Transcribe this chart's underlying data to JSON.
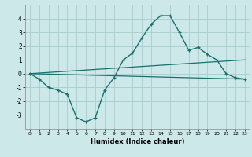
{
  "title": "",
  "xlabel": "Humidex (Indice chaleur)",
  "bg_color": "#cce8e8",
  "grid_color": "#aacccc",
  "line_color": "#1a7070",
  "xlim": [
    -0.5,
    23.5
  ],
  "ylim": [
    -4.0,
    5.0
  ],
  "x_ticks": [
    0,
    1,
    2,
    3,
    4,
    5,
    6,
    7,
    8,
    9,
    10,
    11,
    12,
    13,
    14,
    15,
    16,
    17,
    18,
    19,
    20,
    21,
    22,
    23
  ],
  "y_ticks": [
    -3,
    -2,
    -1,
    0,
    1,
    2,
    3,
    4
  ],
  "main_x": [
    0,
    1,
    2,
    3,
    4,
    5,
    6,
    7,
    8,
    9,
    10,
    11,
    12,
    13,
    14,
    15,
    16,
    17,
    18,
    19,
    20,
    21,
    22,
    23
  ],
  "main_y": [
    0.0,
    -0.4,
    -1.0,
    -1.2,
    -1.5,
    -3.2,
    -3.5,
    -3.2,
    -1.2,
    -0.3,
    1.0,
    1.5,
    2.6,
    3.6,
    4.2,
    4.2,
    3.0,
    1.7,
    1.9,
    1.4,
    1.0,
    0.0,
    -0.3,
    -0.4
  ],
  "line2_x": [
    0,
    23
  ],
  "line2_y": [
    0.0,
    -0.4
  ],
  "line3_x": [
    0,
    23
  ],
  "line3_y": [
    0.0,
    1.0
  ]
}
